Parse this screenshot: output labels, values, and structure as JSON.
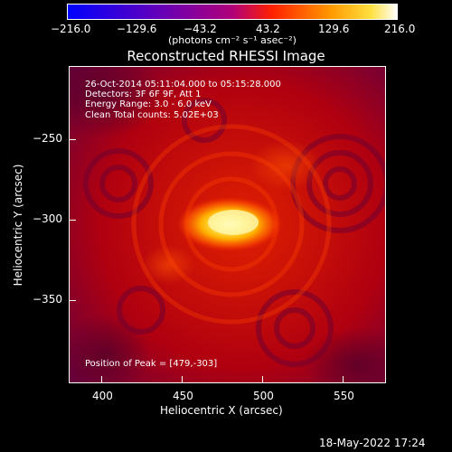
{
  "colorbar": {
    "tick_labels": [
      "−216.0",
      "−129.6",
      "−43.2",
      "43.2",
      "129.6",
      "216.0"
    ],
    "unit_label": "(photons cm⁻² s⁻¹ asec⁻²)",
    "range": [
      -216.0,
      216.0
    ]
  },
  "plot": {
    "title": "Reconstructed RHESSI Image",
    "xlabel": "Heliocentric X (arcsec)",
    "ylabel": "Heliocentric Y (arcsec)",
    "x_ticks": [
      "400",
      "450",
      "500",
      "550"
    ],
    "y_ticks": [
      "−250",
      "−300",
      "−350"
    ],
    "xlim": [
      380,
      572
    ],
    "ylim": [
      -397,
      -205
    ],
    "annotations": {
      "line1": "26-Oct-2014 05:11:04.000 to 05:15:28.000",
      "line2": "Detectors: 3F 6F 9F, Att 1",
      "line3": "Energy Range: 3.0 - 6.0 keV",
      "line4": "Clean    Total counts: 5.02E+03",
      "peak": "Position of Peak = [479,-303]"
    }
  },
  "footer": {
    "timestamp": "18-May-2022 17:24"
  },
  "chart_data": {
    "type": "heatmap",
    "title": "Reconstructed RHESSI Image",
    "xlabel": "Heliocentric X (arcsec)",
    "ylabel": "Heliocentric Y (arcsec)",
    "xlim": [
      380,
      572
    ],
    "ylim": [
      -397,
      -205
    ],
    "colormap_range": [
      -216.0,
      216.0
    ],
    "peak_position": [
      479,
      -303
    ]
  }
}
